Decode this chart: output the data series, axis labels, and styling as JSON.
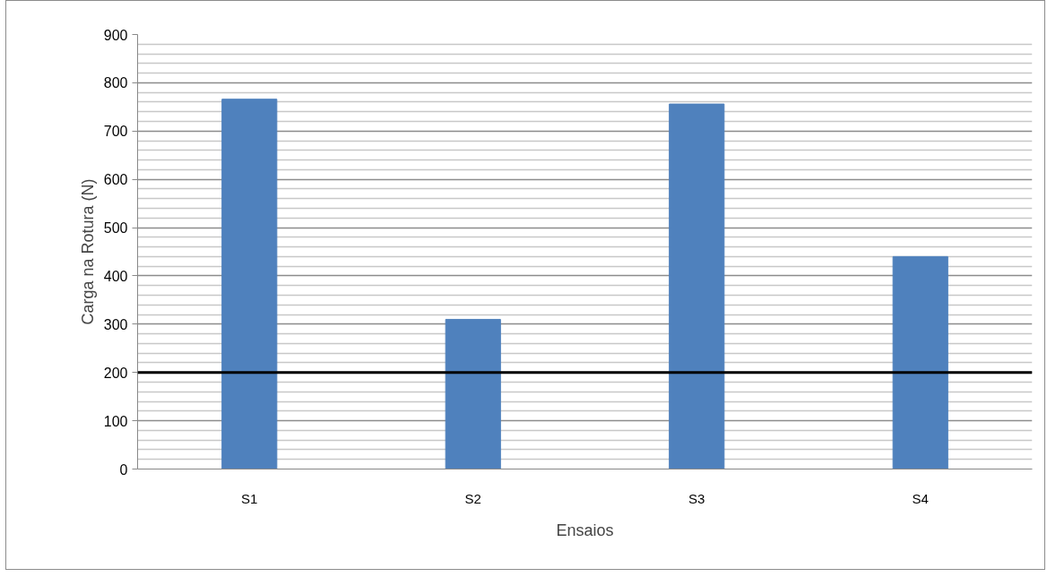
{
  "chart_data": {
    "type": "bar",
    "xlabel": "Ensaios",
    "ylabel": "Carga na Rotura (N)",
    "categories": [
      "S1",
      "S2",
      "S3",
      "S4"
    ],
    "values": [
      766,
      310,
      756,
      440
    ],
    "color": "#4f81bd",
    "ylim": [
      0,
      900
    ],
    "yticks": [
      0,
      100,
      200,
      300,
      400,
      500,
      600,
      700,
      800,
      900
    ],
    "grid": "y",
    "ref_lines": [
      {
        "axis": "y",
        "value": 200,
        "color": "#000000"
      }
    ]
  }
}
